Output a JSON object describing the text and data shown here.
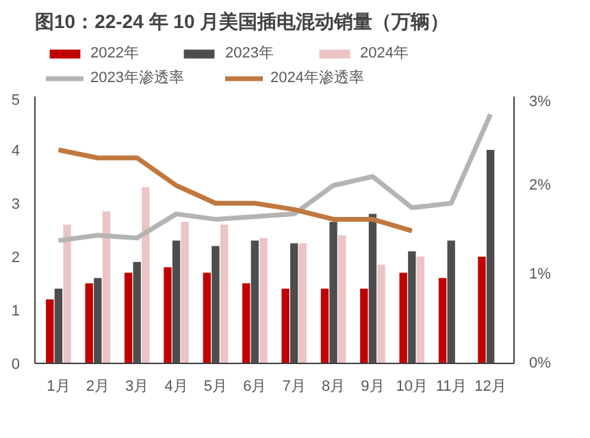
{
  "chart_data": {
    "type": "bar",
    "title": "图10：22-24 年 10 月美国插电混动销量（万辆）",
    "categories": [
      "1月",
      "2月",
      "3月",
      "4月",
      "5月",
      "6月",
      "7月",
      "8月",
      "9月",
      "10月",
      "11月",
      "12月"
    ],
    "series": [
      {
        "name": "2022年",
        "color": "#c00000",
        "values": [
          1.2,
          1.5,
          1.7,
          1.8,
          1.7,
          1.5,
          1.4,
          1.4,
          1.4,
          1.7,
          1.6,
          2.0
        ]
      },
      {
        "name": "2023年",
        "color": "#4d4d4d",
        "values": [
          1.4,
          1.6,
          1.9,
          2.3,
          2.2,
          2.3,
          2.25,
          2.65,
          2.8,
          2.1,
          2.3,
          4.0
        ]
      },
      {
        "name": "2024年",
        "color": "#ecc4c4",
        "values": [
          2.6,
          2.85,
          3.3,
          2.65,
          2.6,
          2.35,
          2.25,
          2.4,
          1.85,
          2.0,
          null,
          null
        ]
      },
      {
        "name": "2023年渗透率",
        "color": "#b4b4b4",
        "type": "line",
        "axis": "y2",
        "values": [
          1.38,
          1.44,
          1.41,
          1.68,
          1.62,
          1.65,
          1.68,
          2.0,
          2.1,
          1.75,
          1.8,
          2.8
        ]
      },
      {
        "name": "2024年渗透率",
        "color": "#c0783f",
        "type": "line",
        "axis": "y2",
        "values": [
          2.4,
          2.31,
          2.31,
          2.0,
          1.8,
          1.8,
          1.73,
          1.62,
          1.62,
          1.49,
          null,
          null
        ]
      }
    ],
    "ylim": [
      0,
      5
    ],
    "yticks": [
      0,
      1,
      2,
      3,
      4,
      5
    ],
    "y2lim": [
      0,
      3
    ],
    "y2ticks": [
      {
        "value": 0,
        "label": "0%"
      },
      {
        "value": 1,
        "label": "1%"
      },
      {
        "value": 2,
        "label": "2%"
      },
      {
        "value": 3,
        "label": "3%"
      }
    ],
    "grid": false,
    "legend": "top"
  }
}
